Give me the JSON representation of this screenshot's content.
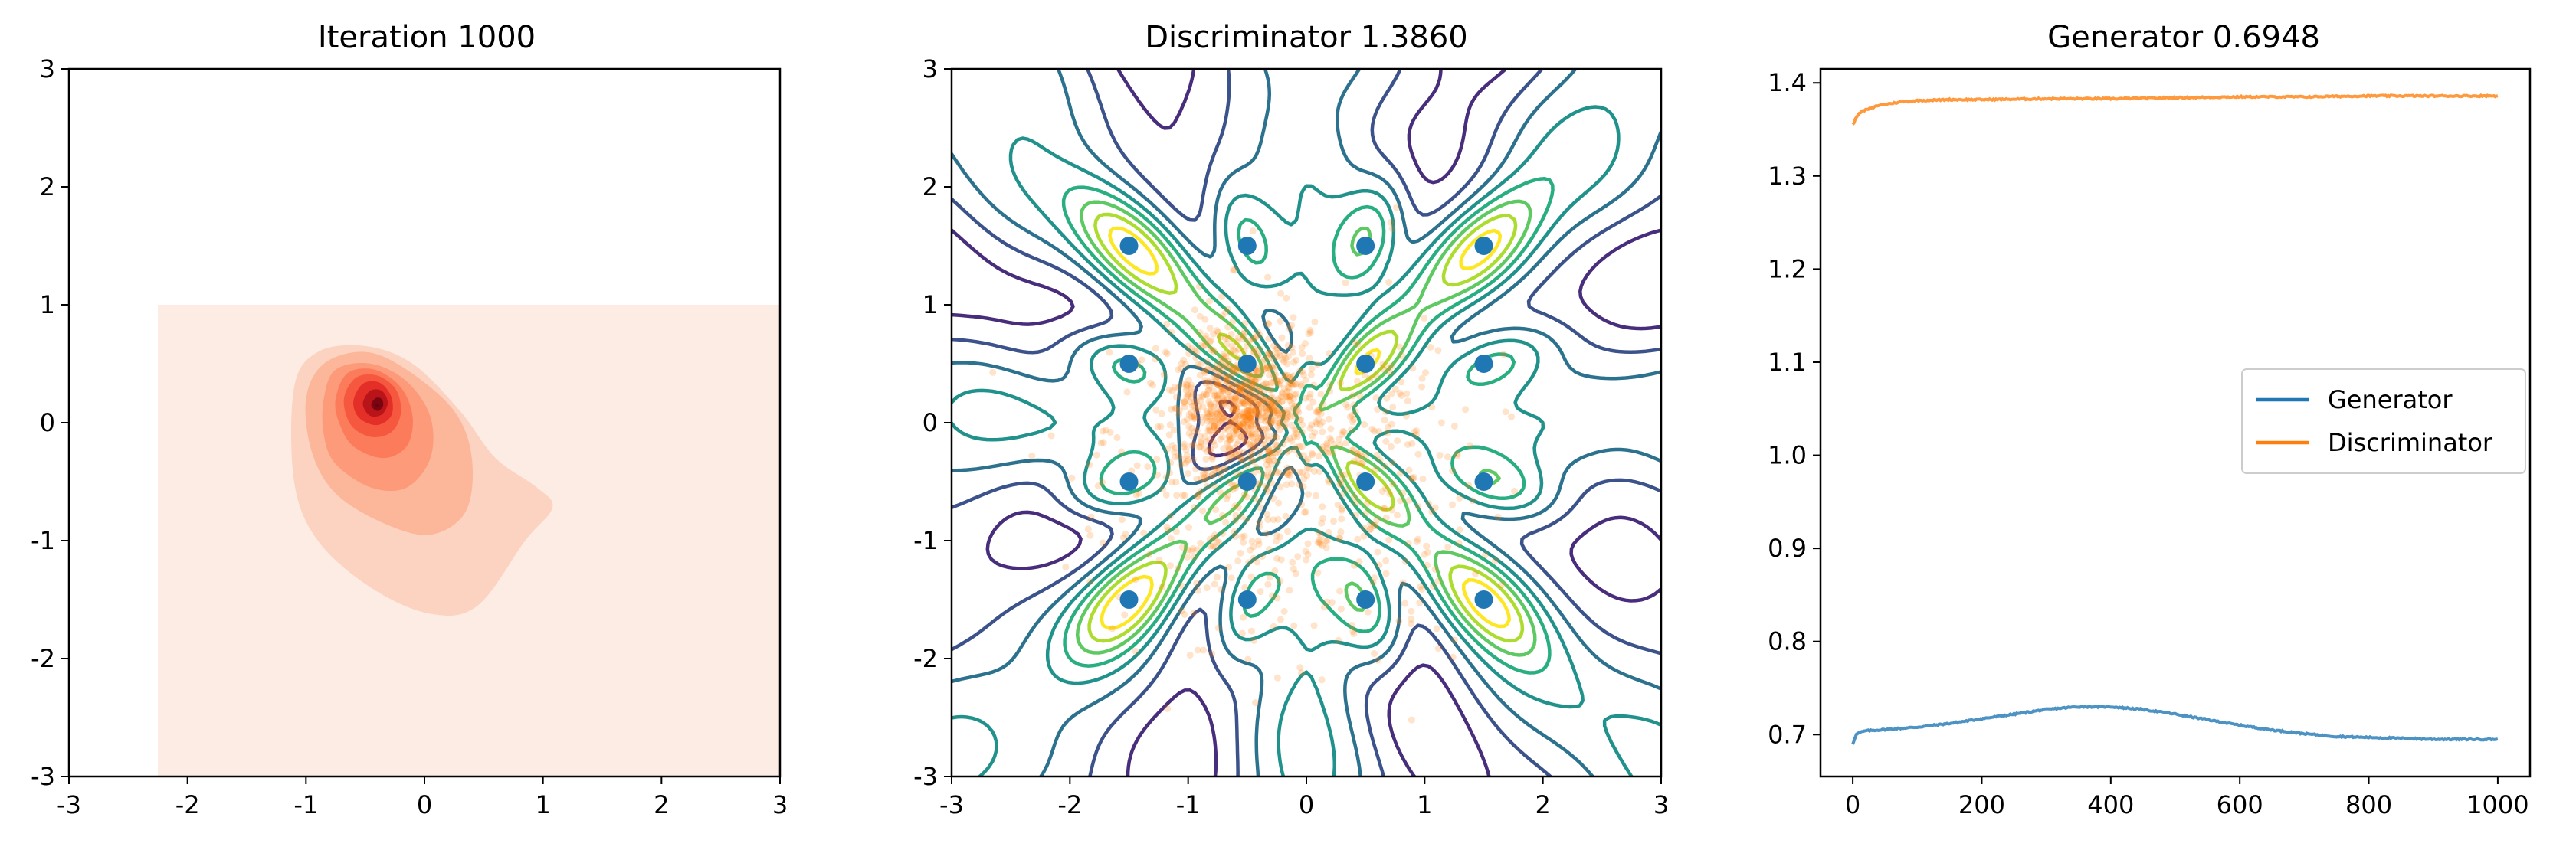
{
  "panels": {
    "kde": {
      "title": "Iteration 1000",
      "chart_data": {
        "type": "heatmap",
        "title": "Iteration 1000",
        "xlim": [
          -3,
          3
        ],
        "ylim": [
          -3,
          3
        ],
        "xticks": [
          "-3",
          "-2",
          "-1",
          "0",
          "1",
          "2",
          "3"
        ],
        "yticks": [
          "-3",
          "-2",
          "-1",
          "0",
          "1",
          "2",
          "3"
        ],
        "colormap": "Reds",
        "background_color": "#fdece3",
        "density_support": {
          "x": [
            -2.25,
            3
          ],
          "y": [
            -3,
            1
          ]
        },
        "peak": {
          "x": -0.4,
          "y": 0.15
        },
        "levels": [
          {
            "color": "#fcd3c1",
            "path": [
              [
                -1.1,
                0.3
              ],
              [
                -0.9,
                0.6
              ],
              [
                -0.5,
                0.65
              ],
              [
                -0.1,
                0.5
              ],
              [
                0.3,
                0.1
              ],
              [
                0.6,
                -0.3
              ],
              [
                0.95,
                -0.55
              ],
              [
                1.08,
                -0.72
              ],
              [
                0.85,
                -1.0
              ],
              [
                0.45,
                -1.55
              ],
              [
                0.05,
                -1.62
              ],
              [
                -0.45,
                -1.4
              ],
              [
                -0.9,
                -1.0
              ],
              [
                -1.1,
                -0.5
              ]
            ]
          },
          {
            "color": "#fcb79b",
            "path": [
              [
                -1.0,
                0.2
              ],
              [
                -0.85,
                0.5
              ],
              [
                -0.5,
                0.6
              ],
              [
                -0.15,
                0.45
              ],
              [
                0.25,
                0.1
              ],
              [
                0.4,
                -0.3
              ],
              [
                0.35,
                -0.75
              ],
              [
                0.05,
                -0.95
              ],
              [
                -0.35,
                -0.85
              ],
              [
                -0.75,
                -0.6
              ],
              [
                -0.95,
                -0.25
              ]
            ]
          },
          {
            "color": "#fc9a7a",
            "path": [
              [
                -0.85,
                0.2
              ],
              [
                -0.75,
                0.45
              ],
              [
                -0.45,
                0.5
              ],
              [
                -0.15,
                0.35
              ],
              [
                0.05,
                0.05
              ],
              [
                0.05,
                -0.3
              ],
              [
                -0.15,
                -0.55
              ],
              [
                -0.45,
                -0.55
              ],
              [
                -0.75,
                -0.35
              ],
              [
                -0.85,
                -0.1
              ]
            ]
          },
          {
            "color": "#fb7b5b",
            "path": [
              [
                -0.75,
                0.2
              ],
              [
                -0.65,
                0.42
              ],
              [
                -0.42,
                0.45
              ],
              [
                -0.2,
                0.3
              ],
              [
                -0.1,
                0.05
              ],
              [
                -0.15,
                -0.2
              ],
              [
                -0.35,
                -0.3
              ],
              [
                -0.6,
                -0.2
              ],
              [
                -0.72,
                0.0
              ]
            ]
          },
          {
            "color": "#f6573f",
            "path": [
              [
                -0.68,
                0.2
              ],
              [
                -0.58,
                0.38
              ],
              [
                -0.4,
                0.4
              ],
              [
                -0.24,
                0.28
              ],
              [
                -0.2,
                0.08
              ],
              [
                -0.28,
                -0.08
              ],
              [
                -0.45,
                -0.12
              ],
              [
                -0.62,
                -0.02
              ]
            ]
          },
          {
            "color": "#e32f27",
            "path": [
              [
                -0.6,
                0.18
              ],
              [
                -0.52,
                0.33
              ],
              [
                -0.38,
                0.34
              ],
              [
                -0.28,
                0.22
              ],
              [
                -0.28,
                0.06
              ],
              [
                -0.4,
                -0.02
              ],
              [
                -0.55,
                0.04
              ]
            ]
          },
          {
            "color": "#b91419",
            "path": [
              [
                -0.52,
                0.16
              ],
              [
                -0.46,
                0.27
              ],
              [
                -0.36,
                0.27
              ],
              [
                -0.31,
                0.17
              ],
              [
                -0.36,
                0.07
              ],
              [
                -0.46,
                0.06
              ]
            ]
          },
          {
            "color": "#7a0510",
            "path": [
              [
                -0.45,
                0.15
              ],
              [
                -0.41,
                0.21
              ],
              [
                -0.36,
                0.2
              ],
              [
                -0.35,
                0.14
              ],
              [
                -0.4,
                0.1
              ]
            ]
          }
        ]
      }
    },
    "discriminator": {
      "title": "Discriminator 1.3860",
      "chart_data": {
        "type": "scatter",
        "title": "Discriminator 1.3860",
        "xlim": [
          -3,
          3
        ],
        "ylim": [
          -3,
          3
        ],
        "xticks": [
          "-3",
          "-2",
          "-1",
          "0",
          "1",
          "2",
          "3"
        ],
        "yticks": [
          "-3",
          "-2",
          "-1",
          "0",
          "1",
          "2",
          "3"
        ],
        "contour_colormap": "viridis",
        "real_points_color": "#1f77b4",
        "fake_points_color": "#ff7f0e",
        "real_points": [
          [
            -1.5,
            1.5
          ],
          [
            -0.5,
            1.5
          ],
          [
            0.5,
            1.5
          ],
          [
            1.5,
            1.5
          ],
          [
            -1.5,
            0.5
          ],
          [
            -0.5,
            0.5
          ],
          [
            0.5,
            0.5
          ],
          [
            1.5,
            0.5
          ],
          [
            -1.5,
            -0.5
          ],
          [
            -0.5,
            -0.5
          ],
          [
            0.5,
            -0.5
          ],
          [
            1.5,
            -0.5
          ],
          [
            -1.5,
            -1.5
          ],
          [
            -0.5,
            -1.5
          ],
          [
            0.5,
            -1.5
          ],
          [
            1.5,
            -1.5
          ]
        ],
        "fake_cloud": {
          "center": [
            -0.55,
            -0.1
          ],
          "count": 1400
        }
      }
    },
    "losses": {
      "title": "Generator 0.6948",
      "chart_data": {
        "type": "line",
        "title": "Generator 0.6948",
        "xlim": [
          -50,
          1050
        ],
        "ylim": [
          0.655,
          1.415
        ],
        "xticks": [
          0,
          200,
          400,
          600,
          800,
          1000
        ],
        "yticks": [
          0.7,
          0.8,
          0.9,
          1.0,
          1.1,
          1.2,
          1.3,
          1.4
        ],
        "xtick_labels": [
          "0",
          "200",
          "400",
          "600",
          "800",
          "1000"
        ],
        "ytick_labels": [
          "0.7",
          "0.8",
          "0.9",
          "1.0",
          "1.1",
          "1.2",
          "1.3",
          "1.4"
        ],
        "legend_position": "center-right",
        "series": [
          {
            "name": "Generator",
            "color": "#1f77b4",
            "x": [
              0,
              5,
              10,
              20,
              40,
              60,
              80,
              100,
              150,
              200,
              250,
              300,
              350,
              400,
              450,
              500,
              550,
              600,
              650,
              700,
              750,
              800,
              850,
              900,
              950,
              1000
            ],
            "y": [
              0.69,
              0.7,
              0.702,
              0.704,
              0.705,
              0.706,
              0.707,
              0.708,
              0.712,
              0.717,
              0.722,
              0.727,
              0.73,
              0.73,
              0.727,
              0.722,
              0.716,
              0.71,
              0.705,
              0.701,
              0.698,
              0.697,
              0.696,
              0.695,
              0.695,
              0.695
            ]
          },
          {
            "name": "Discriminator",
            "color": "#ff7f0e",
            "x": [
              0,
              5,
              10,
              20,
              30,
              40,
              60,
              80,
              100,
              150,
              200,
              300,
              400,
              500,
              600,
              700,
              800,
              900,
              1000
            ],
            "y": [
              1.355,
              1.362,
              1.368,
              1.371,
              1.373,
              1.376,
              1.378,
              1.38,
              1.381,
              1.382,
              1.382,
              1.383,
              1.383,
              1.384,
              1.385,
              1.385,
              1.386,
              1.386,
              1.386
            ]
          }
        ]
      }
    }
  }
}
